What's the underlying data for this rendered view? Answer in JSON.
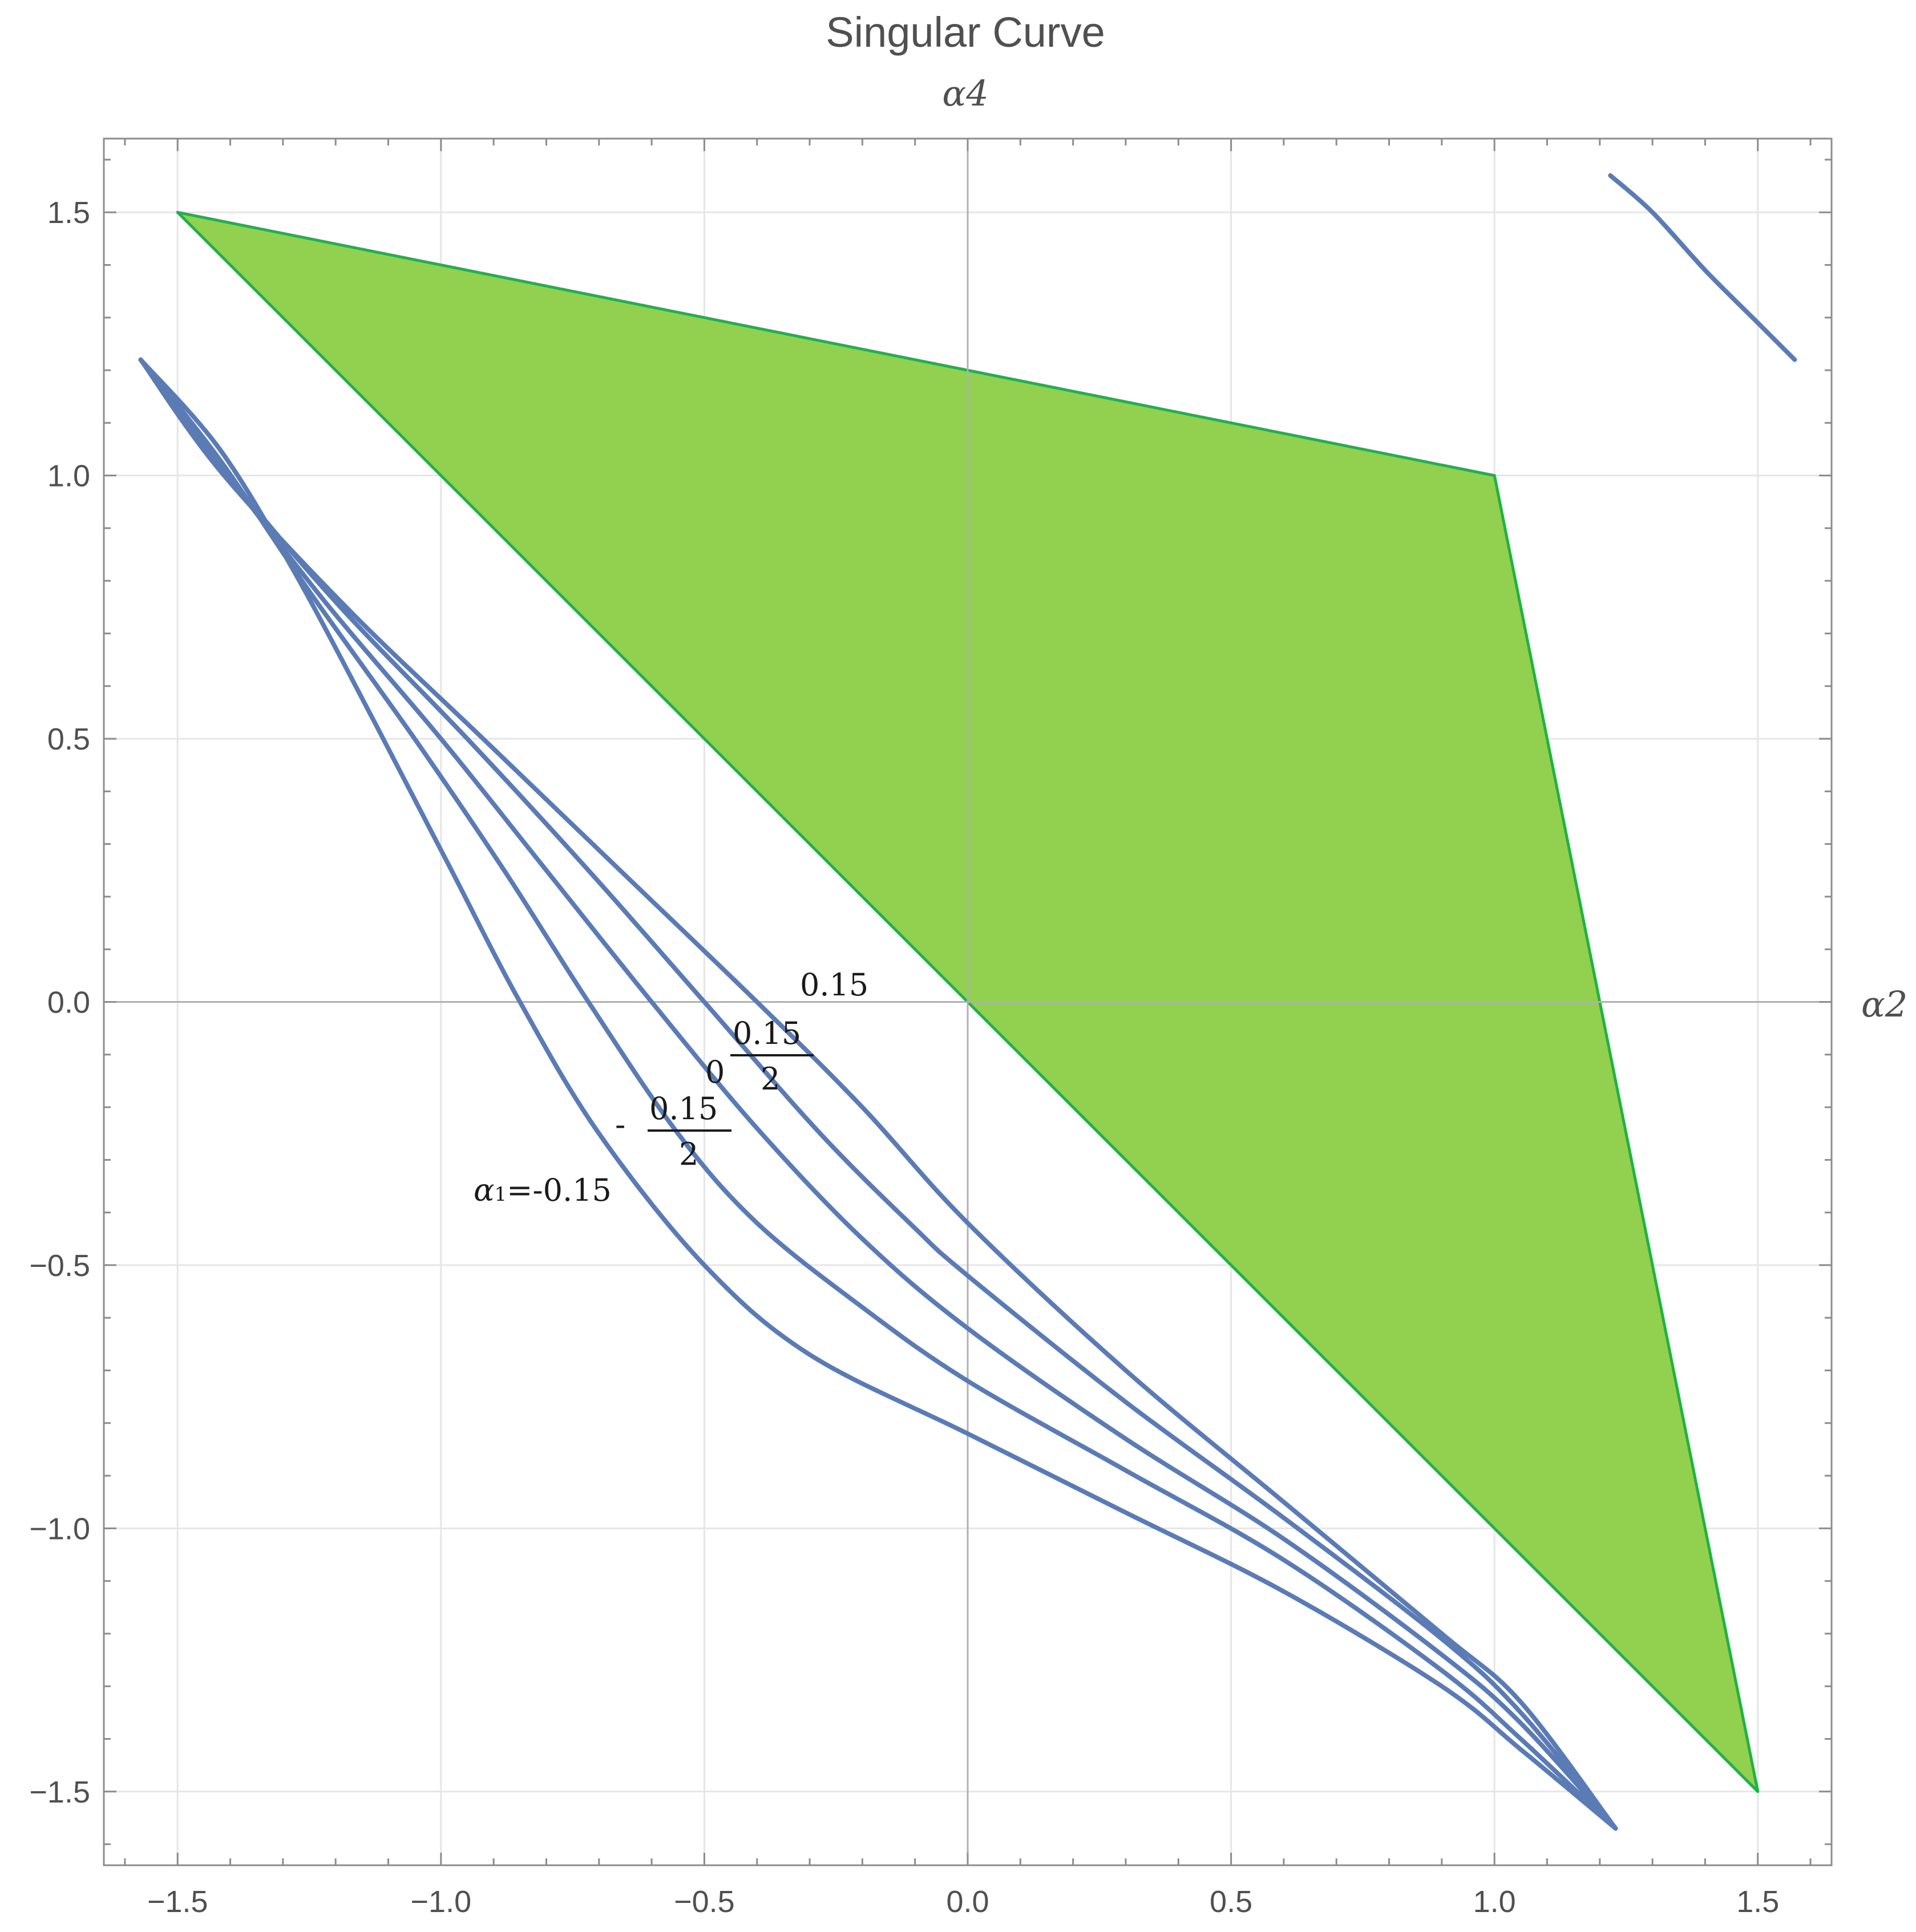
{
  "chart_data": {
    "type": "line",
    "title": "Singular Curve",
    "xlabel": "α2",
    "ylabel": "α4",
    "xlim": [
      -1.64,
      1.64
    ],
    "ylim": [
      -1.64,
      1.64
    ],
    "grid": true,
    "frame": true,
    "axes_through_origin": true,
    "x_ticks": [
      "-1.5",
      "-1.0",
      "-0.5",
      "0.0",
      "0.5",
      "1.0",
      "1.5"
    ],
    "y_ticks": [
      "-1.5",
      "-1.0",
      "-0.5",
      "0.0",
      "0.5",
      "1.0",
      "1.5"
    ],
    "x_tick_values": [
      -1.5,
      -1.0,
      -0.5,
      0.0,
      0.5,
      1.0,
      1.5
    ],
    "y_tick_values": [
      -1.5,
      -1.0,
      -0.5,
      0.0,
      0.5,
      1.0,
      1.5
    ],
    "region": {
      "name": "",
      "color": "#92D050",
      "edge_color": "#22B04A",
      "vertices": [
        [
          -1.5,
          1.5
        ],
        [
          1.0,
          1.0
        ],
        [
          1.5,
          -1.5
        ]
      ]
    },
    "curve_color": "#5B7BB5",
    "series": [
      {
        "param": "-0.15",
        "points": [
          [
            -1.57,
            1.22
          ],
          [
            -1.42,
            1.05
          ],
          [
            -1.28,
            0.82
          ],
          [
            -1.12,
            0.52
          ],
          [
            -0.98,
            0.25
          ],
          [
            -0.85,
            0.0
          ],
          [
            -0.7,
            -0.25
          ],
          [
            -0.5,
            -0.5
          ],
          [
            -0.3,
            -0.67
          ],
          [
            0.0,
            -0.82
          ],
          [
            0.3,
            -0.97
          ],
          [
            0.6,
            -1.12
          ],
          [
            0.9,
            -1.3
          ],
          [
            1.05,
            -1.42
          ],
          [
            1.23,
            -1.57
          ]
        ]
      },
      {
        "param": "-0.075",
        "points": [
          [
            -1.57,
            1.22
          ],
          [
            -1.42,
            1.03
          ],
          [
            -1.25,
            0.78
          ],
          [
            -1.05,
            0.5
          ],
          [
            -0.88,
            0.25
          ],
          [
            -0.72,
            0.0
          ],
          [
            -0.55,
            -0.25
          ],
          [
            -0.4,
            -0.42
          ],
          [
            -0.2,
            -0.58
          ],
          [
            0.0,
            -0.72
          ],
          [
            0.3,
            -0.89
          ],
          [
            0.6,
            -1.06
          ],
          [
            0.9,
            -1.27
          ],
          [
            1.05,
            -1.4
          ],
          [
            1.23,
            -1.57
          ]
        ]
      },
      {
        "param": "0",
        "points": [
          [
            -1.57,
            1.22
          ],
          [
            -1.42,
            1.02
          ],
          [
            -1.22,
            0.76
          ],
          [
            -1.0,
            0.5
          ],
          [
            -0.8,
            0.25
          ],
          [
            -0.6,
            0.0
          ],
          [
            -0.4,
            -0.24
          ],
          [
            -0.2,
            -0.45
          ],
          [
            0.0,
            -0.62
          ],
          [
            0.3,
            -0.83
          ],
          [
            0.6,
            -1.02
          ],
          [
            0.9,
            -1.24
          ],
          [
            1.05,
            -1.37
          ],
          [
            1.23,
            -1.57
          ]
        ]
      },
      {
        "param": "0.075",
        "points": [
          [
            -1.57,
            1.22
          ],
          [
            -1.42,
            1.02
          ],
          [
            -1.2,
            0.76
          ],
          [
            -0.95,
            0.5
          ],
          [
            -0.72,
            0.25
          ],
          [
            -0.5,
            0.0
          ],
          [
            -0.28,
            -0.25
          ],
          [
            -0.1,
            -0.43
          ],
          [
            0.0,
            -0.52
          ],
          [
            0.3,
            -0.76
          ],
          [
            0.6,
            -0.98
          ],
          [
            0.9,
            -1.21
          ],
          [
            1.05,
            -1.35
          ],
          [
            1.23,
            -1.57
          ]
        ]
      },
      {
        "param": "0.15",
        "points": [
          [
            -1.57,
            1.22
          ],
          [
            -1.42,
            1.01
          ],
          [
            -1.18,
            0.75
          ],
          [
            -0.92,
            0.5
          ],
          [
            -0.66,
            0.25
          ],
          [
            -0.4,
            0.0
          ],
          [
            -0.2,
            -0.2
          ],
          [
            0.0,
            -0.42
          ],
          [
            0.3,
            -0.7
          ],
          [
            0.6,
            -0.95
          ],
          [
            0.9,
            -1.2
          ],
          [
            1.05,
            -1.33
          ],
          [
            1.23,
            -1.57
          ]
        ]
      },
      {
        "param": "",
        "points": [
          [
            1.22,
            1.57
          ],
          [
            1.3,
            1.5
          ],
          [
            1.4,
            1.39
          ],
          [
            1.5,
            1.29
          ],
          [
            1.57,
            1.22
          ]
        ]
      }
    ],
    "labels": {
      "first_prefix": "α",
      "first_subscript": "1",
      "first_value": "=-0.15",
      "neg_frac_sign": "-",
      "neg_frac_num": "0.15",
      "neg_frac_den": "2",
      "zero": "0",
      "pos_frac_num": "0.15",
      "pos_frac_den": "2",
      "top": "0.15"
    }
  }
}
